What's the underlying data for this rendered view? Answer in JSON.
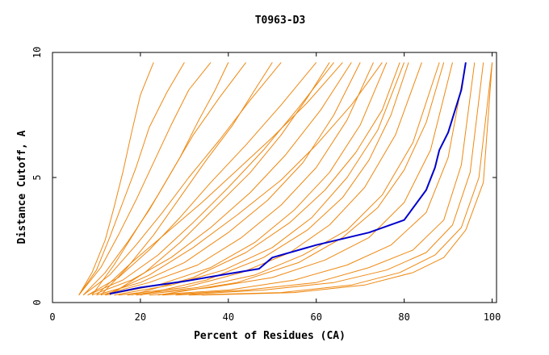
{
  "chart_data": {
    "type": "line",
    "title": "T0963-D3",
    "xlabel": "Percent of Residues (CA)",
    "ylabel": "Distance Cutoff, A",
    "xlim": [
      0,
      101
    ],
    "ylim": [
      0,
      10
    ],
    "xticks": [
      0,
      20,
      40,
      60,
      80,
      100
    ],
    "xtick_labels": [
      "0",
      "20",
      "40",
      "60",
      "80",
      "100"
    ],
    "yticks": [
      0,
      5,
      10
    ],
    "ytick_labels": [
      "0",
      "5",
      "10"
    ],
    "grid": false,
    "legend": "none",
    "colors": {
      "highlight": "#0000cc",
      "others": "#ee8811",
      "frame": "#000000"
    },
    "highlight_series": {
      "x": [
        13,
        20,
        30,
        40,
        47,
        50,
        60,
        72,
        80,
        85,
        87,
        88,
        90,
        93,
        94
      ],
      "y": [
        0.35,
        0.6,
        0.85,
        1.15,
        1.35,
        1.8,
        2.3,
        2.8,
        3.3,
        4.5,
        5.4,
        6.1,
        6.8,
        8.5,
        9.6
      ]
    },
    "other_series": [
      {
        "x": [
          6,
          9,
          12,
          14,
          16,
          18,
          20,
          23
        ],
        "y": [
          0.3,
          1.2,
          2.5,
          3.8,
          5.2,
          6.8,
          8.3,
          9.6
        ]
      },
      {
        "x": [
          6,
          10,
          13,
          16,
          19,
          22,
          26,
          30
        ],
        "y": [
          0.3,
          1.3,
          2.6,
          4.0,
          5.4,
          7.0,
          8.4,
          9.6
        ]
      },
      {
        "x": [
          6,
          11,
          15,
          19,
          23,
          27,
          31,
          36
        ],
        "y": [
          0.3,
          1.4,
          2.7,
          4.1,
          5.6,
          7.1,
          8.5,
          9.6
        ]
      },
      {
        "x": [
          7,
          12,
          17,
          22,
          27,
          32,
          38,
          44
        ],
        "y": [
          0.3,
          1.2,
          2.4,
          3.7,
          5.2,
          6.7,
          8.2,
          9.6
        ]
      },
      {
        "x": [
          7,
          13,
          19,
          25,
          31,
          38,
          45,
          52
        ],
        "y": [
          0.3,
          1.1,
          2.3,
          3.6,
          5.0,
          6.5,
          8.1,
          9.6
        ]
      },
      {
        "x": [
          8,
          15,
          22,
          29,
          36,
          44,
          52,
          60
        ],
        "y": [
          0.3,
          1.0,
          2.1,
          3.4,
          4.8,
          6.3,
          7.9,
          9.6
        ]
      },
      {
        "x": [
          8,
          16,
          24,
          32,
          40,
          48,
          56,
          64
        ],
        "y": [
          0.3,
          0.9,
          1.9,
          3.2,
          4.6,
          6.1,
          7.8,
          9.6
        ]
      },
      {
        "x": [
          9,
          18,
          27,
          36,
          45,
          53,
          61,
          68
        ],
        "y": [
          0.3,
          0.9,
          1.8,
          3.0,
          4.4,
          5.9,
          7.7,
          9.6
        ]
      },
      {
        "x": [
          10,
          20,
          30,
          40,
          49,
          57,
          64,
          70
        ],
        "y": [
          0.3,
          0.8,
          1.6,
          2.8,
          4.1,
          5.6,
          7.5,
          9.6
        ]
      },
      {
        "x": [
          11,
          22,
          33,
          43,
          52,
          60,
          67,
          73
        ],
        "y": [
          0.3,
          0.8,
          1.5,
          2.6,
          3.9,
          5.4,
          7.3,
          9.6
        ]
      },
      {
        "x": [
          12,
          24,
          36,
          46,
          55,
          63,
          70,
          76
        ],
        "y": [
          0.3,
          0.7,
          1.4,
          2.4,
          3.7,
          5.2,
          7.1,
          9.6
        ]
      },
      {
        "x": [
          14,
          27,
          39,
          50,
          59,
          67,
          74,
          80
        ],
        "y": [
          0.3,
          0.7,
          1.3,
          2.2,
          3.4,
          5.0,
          6.9,
          9.6
        ]
      },
      {
        "x": [
          15,
          30,
          43,
          54,
          63,
          71,
          78,
          84
        ],
        "y": [
          0.3,
          0.6,
          1.2,
          2.0,
          3.1,
          4.6,
          6.7,
          9.6
        ]
      },
      {
        "x": [
          17,
          33,
          46,
          57,
          67,
          75,
          82,
          88
        ],
        "y": [
          0.3,
          0.6,
          1.1,
          1.9,
          2.9,
          4.3,
          6.4,
          9.6
        ]
      },
      {
        "x": [
          19,
          36,
          50,
          62,
          72,
          80,
          86,
          91
        ],
        "y": [
          0.3,
          0.6,
          1.0,
          1.7,
          2.6,
          4.0,
          6.1,
          9.6
        ]
      },
      {
        "x": [
          22,
          40,
          55,
          67,
          77,
          85,
          90,
          94
        ],
        "y": [
          0.3,
          0.5,
          0.9,
          1.5,
          2.3,
          3.6,
          5.8,
          9.6
        ]
      },
      {
        "x": [
          25,
          44,
          60,
          72,
          82,
          89,
          93,
          96
        ],
        "y": [
          0.3,
          0.5,
          0.8,
          1.4,
          2.1,
          3.3,
          5.5,
          9.6
        ]
      },
      {
        "x": [
          28,
          48,
          64,
          76,
          85,
          91,
          95,
          98
        ],
        "y": [
          0.3,
          0.5,
          0.8,
          1.3,
          2.0,
          3.1,
          5.2,
          9.6
        ]
      },
      {
        "x": [
          31,
          52,
          68,
          79,
          87,
          93,
          97,
          100
        ],
        "y": [
          0.3,
          0.4,
          0.7,
          1.2,
          1.9,
          3.0,
          5.0,
          9.6
        ]
      },
      {
        "x": [
          34,
          55,
          71,
          82,
          89,
          94,
          98,
          100
        ],
        "y": [
          0.3,
          0.4,
          0.7,
          1.2,
          1.8,
          2.9,
          4.8,
          9.6
        ]
      },
      {
        "x": [
          10,
          18,
          26,
          34,
          42,
          50,
          58,
          66
        ],
        "y": [
          0.3,
          1.6,
          2.8,
          4.0,
          5.3,
          6.6,
          8.0,
          9.6
        ]
      },
      {
        "x": [
          12,
          22,
          32,
          42,
          52,
          60,
          68,
          75
        ],
        "y": [
          0.3,
          1.1,
          2.2,
          3.5,
          4.9,
          6.3,
          7.9,
          9.6
        ]
      },
      {
        "x": [
          9,
          14,
          19,
          24,
          29,
          33,
          37,
          40
        ],
        "y": [
          0.3,
          1.5,
          2.9,
          4.3,
          5.8,
          7.2,
          8.5,
          9.6
        ]
      },
      {
        "x": [
          11,
          17,
          23,
          29,
          35,
          41,
          46,
          50
        ],
        "y": [
          0.3,
          1.4,
          2.7,
          4.2,
          5.7,
          7.1,
          8.5,
          9.6
        ]
      },
      {
        "x": [
          13,
          21,
          29,
          37,
          45,
          52,
          58,
          63
        ],
        "y": [
          0.3,
          1.2,
          2.4,
          3.8,
          5.2,
          6.7,
          8.2,
          9.6
        ]
      },
      {
        "x": [
          20,
          35,
          48,
          58,
          66,
          72,
          77,
          81
        ],
        "y": [
          0.3,
          0.9,
          1.8,
          2.9,
          4.2,
          5.7,
          7.5,
          9.6
        ]
      },
      {
        "x": [
          24,
          42,
          56,
          66,
          74,
          80,
          85,
          89
        ],
        "y": [
          0.3,
          0.8,
          1.6,
          2.6,
          3.8,
          5.3,
          7.2,
          9.6
        ]
      },
      {
        "x": [
          18,
          32,
          44,
          54,
          62,
          69,
          75,
          79
        ],
        "y": [
          0.3,
          1.0,
          2.0,
          3.2,
          4.5,
          6.0,
          7.7,
          9.6
        ]
      }
    ]
  }
}
